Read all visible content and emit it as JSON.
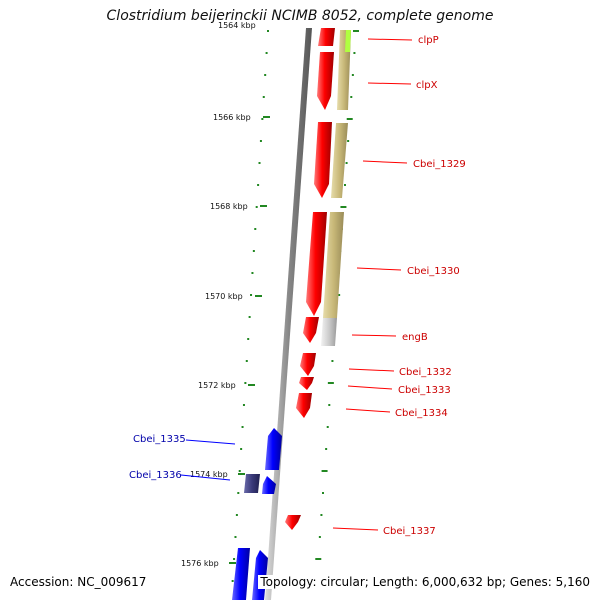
{
  "title": "Clostridium beijerinckii NCIMB 8052, complete genome",
  "accession": "Accession: NC_009617",
  "topology": "Topology: circular; Length: 6,000,632 bp; Genes: 5,160",
  "colors": {
    "forward_gene": "#ff0000",
    "reverse_gene": "#0000ff",
    "rna_gene": "#3a3a7a",
    "label_red": "#cc0000",
    "label_blue": "#0000aa",
    "cog_track": "#c8b878",
    "cog_highlight": "#b0ff40",
    "tick": "#228822"
  },
  "scale_labels": [
    "1566 kbp",
    "1568 kbp",
    "1570 kbp",
    "1572 kbp",
    "1574 kbp",
    "1576 kbp"
  ],
  "gene_labels": [
    {
      "text": "clpP",
      "strand": "forward"
    },
    {
      "text": "clpX",
      "strand": "forward"
    },
    {
      "text": "Cbei_1329",
      "strand": "forward"
    },
    {
      "text": "Cbei_1330",
      "strand": "forward"
    },
    {
      "text": "engB",
      "strand": "forward"
    },
    {
      "text": "Cbei_1332",
      "strand": "forward"
    },
    {
      "text": "Cbei_1333",
      "strand": "forward"
    },
    {
      "text": "Cbei_1334",
      "strand": "forward"
    },
    {
      "text": "Cbei_1335",
      "strand": "reverse"
    },
    {
      "text": "Cbei_1336",
      "strand": "reverse"
    },
    {
      "text": "Cbei_1337",
      "strand": "forward"
    }
  ]
}
